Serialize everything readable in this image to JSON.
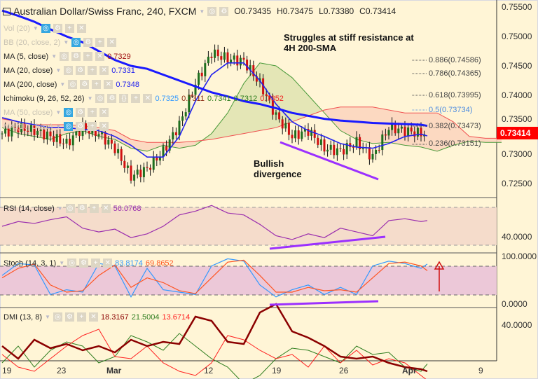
{
  "header": {
    "symbol": "Australian Dollar/Swiss Franc, 240, FXCM",
    "open": "O0.73435",
    "high": "H0.73475",
    "low": "L0.73380",
    "close": "C0.73414"
  },
  "indicators": {
    "vol": {
      "label": "Vol (20)"
    },
    "bb": {
      "label": "BB (20, close, 2)"
    },
    "ma5": {
      "label": "MA (5, close)",
      "value": "0.7329"
    },
    "ma20": {
      "label": "MA (20, close)",
      "value": "0.7331"
    },
    "ma200": {
      "label": "MA (200, close)",
      "value": "0.7348"
    },
    "ichimoku": {
      "label": "Ichimoku (9, 26, 52, 26)",
      "values": [
        "0.7325",
        "0.7311",
        "0.7341",
        "0.7312",
        "0.7352"
      ]
    },
    "ma_hidden": {
      "label": "MA (50, close)"
    },
    "ma_hidden2": {
      "label": "MA (10, close)"
    },
    "rsi": {
      "label": "RSI (14, close)",
      "value": "56.0768"
    },
    "stoch": {
      "label": "Stoch (14, 3, 1)",
      "k": "83.8174",
      "d": "69.8652"
    },
    "dmi": {
      "label": "DMI (13, 8)",
      "adx": "18.3167",
      "plus": "21.5004",
      "minus": "13.6714"
    }
  },
  "annotations": {
    "resistance": "Struggles at stiff resistance at 4H 200-SMA",
    "divergence": "Bullish divergence"
  },
  "fib_levels": [
    "0.886(0.74586)",
    "0.786(0.74365)",
    "0.618(0.73995)",
    "0.5(0.73734)",
    "0.382(0.73473)",
    "0.236(0.73151)"
  ],
  "price_axis": [
    "0.75500",
    "0.75000",
    "0.74500",
    "0.74000",
    "0.73500",
    "0.73000",
    "0.72500"
  ],
  "last_price": "0.73414",
  "rsi_axis": "40.0000",
  "stoch_axis": [
    "100.0000",
    "0.0000"
  ],
  "dmi_axis": "40.0000",
  "date_axis": [
    "19",
    "23",
    "Mar",
    "12",
    "19",
    "26",
    "Apr",
    "9"
  ],
  "colors": {
    "ma200": "#1a1aff",
    "ma20": "#2222ee",
    "up": "#1e6e1e",
    "down": "#d01010",
    "rsi": "#9b2fae",
    "stochK": "#3399ff",
    "stochD": "#ff5522",
    "adx": "#8b0000",
    "plusdi": "#2e7d1e",
    "minusdi": "#ff2020",
    "divergence": "#9b30ff"
  },
  "chart_data": {
    "type": "line",
    "bars": 132,
    "price_ylim": [
      0.7245,
      0.756
    ],
    "close": [
      0.7335,
      0.7345,
      0.734,
      0.733,
      0.7318,
      0.7345,
      0.7335,
      0.731,
      0.7262,
      0.7275,
      0.7305,
      0.735,
      0.742,
      0.7472,
      0.7462,
      0.7458,
      0.742,
      0.7365,
      0.733,
      0.734,
      0.731,
      0.7305,
      0.732,
      0.7295,
      0.7345,
      0.734,
      0.7335,
      0.73414
    ],
    "ma20": [
      0.7362,
      0.7355,
      0.735,
      0.7345,
      0.7345,
      0.7342,
      0.734,
      0.733,
      0.7315,
      0.7295,
      0.7295,
      0.733,
      0.739,
      0.7435,
      0.7455,
      0.7455,
      0.7425,
      0.7385,
      0.7355,
      0.734,
      0.733,
      0.7318,
      0.7312,
      0.731,
      0.7318,
      0.733,
      0.7334,
      0.7331
    ],
    "ma200": [
      0.7544,
      0.7535,
      0.7525,
      0.7512,
      0.75,
      0.749,
      0.7475,
      0.746,
      0.745,
      0.7445,
      0.7435,
      0.7425,
      0.7415,
      0.7405,
      0.7398,
      0.739,
      0.7385,
      0.7378,
      0.737,
      0.7365,
      0.736,
      0.7357,
      0.7355,
      0.7353,
      0.7352,
      0.7351,
      0.735,
      0.7348
    ],
    "span_a": [
      0.7345,
      0.7335,
      0.733,
      0.7325,
      0.7335,
      0.734,
      0.733,
      0.7325,
      0.731,
      0.7305,
      0.7315,
      0.731,
      0.7315,
      0.7335,
      0.737,
      0.742,
      0.7455,
      0.745,
      0.743,
      0.74,
      0.737,
      0.734,
      0.7325,
      0.7318,
      0.732,
      0.7315,
      0.7312,
      0.7305,
      0.7315,
      0.7322,
      0.732,
      0.732
    ],
    "span_b": [
      0.736,
      0.7355,
      0.735,
      0.735,
      0.735,
      0.7348,
      0.7345,
      0.734,
      0.7325,
      0.732,
      0.732,
      0.732,
      0.7322,
      0.7325,
      0.733,
      0.7335,
      0.734,
      0.7345,
      0.7355,
      0.7365,
      0.7375,
      0.738,
      0.738,
      0.738,
      0.7375,
      0.737,
      0.737,
      0.737,
      0.7355,
      0.733,
      0.7327,
      0.7327
    ],
    "rsi": [
      50,
      55,
      53,
      57,
      60,
      48,
      44,
      47,
      38,
      42,
      50,
      62,
      66,
      72,
      64,
      62,
      52,
      40,
      36,
      42,
      38,
      48,
      44,
      40,
      56,
      58,
      55,
      56
    ],
    "stoch_k": [
      60,
      85,
      82,
      20,
      30,
      25,
      85,
      80,
      15,
      75,
      30,
      25,
      20,
      80,
      95,
      90,
      40,
      15,
      30,
      40,
      20,
      35,
      20,
      80,
      90,
      85,
      75,
      84
    ],
    "stoch_d": [
      55,
      75,
      84,
      40,
      25,
      28,
      60,
      82,
      35,
      55,
      45,
      28,
      22,
      55,
      88,
      92,
      60,
      25,
      25,
      35,
      28,
      30,
      25,
      55,
      85,
      88,
      80,
      70
    ],
    "adx": [
      30,
      24,
      33,
      29,
      31,
      28,
      30,
      27,
      33,
      30,
      32,
      31,
      44,
      42,
      32,
      31,
      46,
      50,
      37,
      34,
      30,
      25,
      24,
      25,
      22,
      20,
      19,
      18
    ],
    "plus_di": [
      22,
      30,
      20,
      28,
      32,
      30,
      22,
      25,
      35,
      32,
      28,
      36,
      30,
      24,
      20,
      12,
      16,
      24,
      29,
      28,
      25,
      22,
      30,
      26,
      27,
      20,
      18,
      21.5
    ],
    "minus_di": [
      26,
      20,
      18,
      24,
      30,
      35,
      38,
      25,
      24,
      30,
      22,
      18,
      16,
      22,
      35,
      33,
      28,
      24,
      26,
      20,
      30,
      22,
      28,
      21,
      24,
      22,
      16,
      13.7
    ],
    "rsi_ylim": [
      30,
      70
    ],
    "stoch_ylim": [
      0,
      100
    ],
    "dmi_ylim": [
      20,
      40
    ]
  }
}
